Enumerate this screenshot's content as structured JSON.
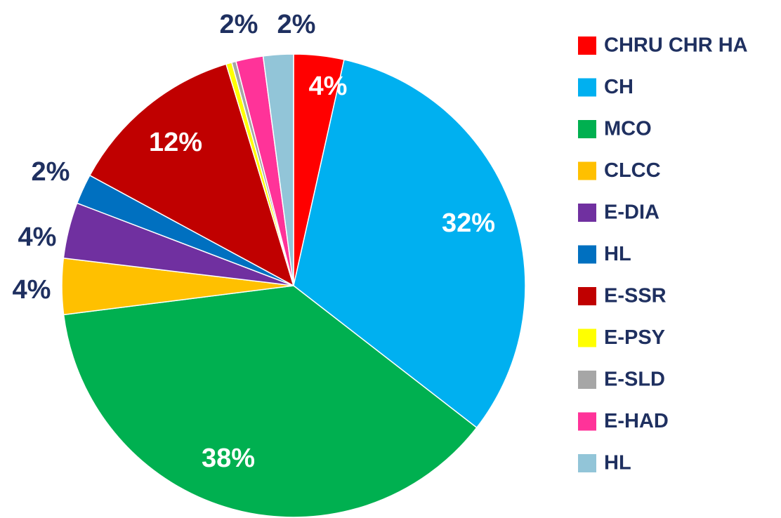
{
  "chart_data": {
    "type": "pie",
    "categories": [
      "CHRU CHR HA",
      "CH",
      "MCO",
      "CLCC",
      "E-DIA",
      "HL",
      "E-SSR",
      "E-PSY",
      "E-SLD",
      "E-HAD",
      "HL"
    ],
    "values": [
      3.5,
      32.0,
      37.5,
      3.9,
      3.9,
      2.1,
      12.4,
      0.4,
      0.3,
      1.9,
      2.1
    ],
    "value_labels": [
      "4%",
      "32%",
      "38%",
      "4%",
      "4%",
      "2%",
      "12%",
      null,
      null,
      "2%",
      "2%"
    ],
    "colors": [
      "#ff0000",
      "#00b0f0",
      "#00b050",
      "#ffc000",
      "#7030a0",
      "#0070c0",
      "#c00000",
      "#ffff00",
      "#a6a6a6",
      "#ff3399",
      "#92c5d8"
    ],
    "legend": "right"
  }
}
